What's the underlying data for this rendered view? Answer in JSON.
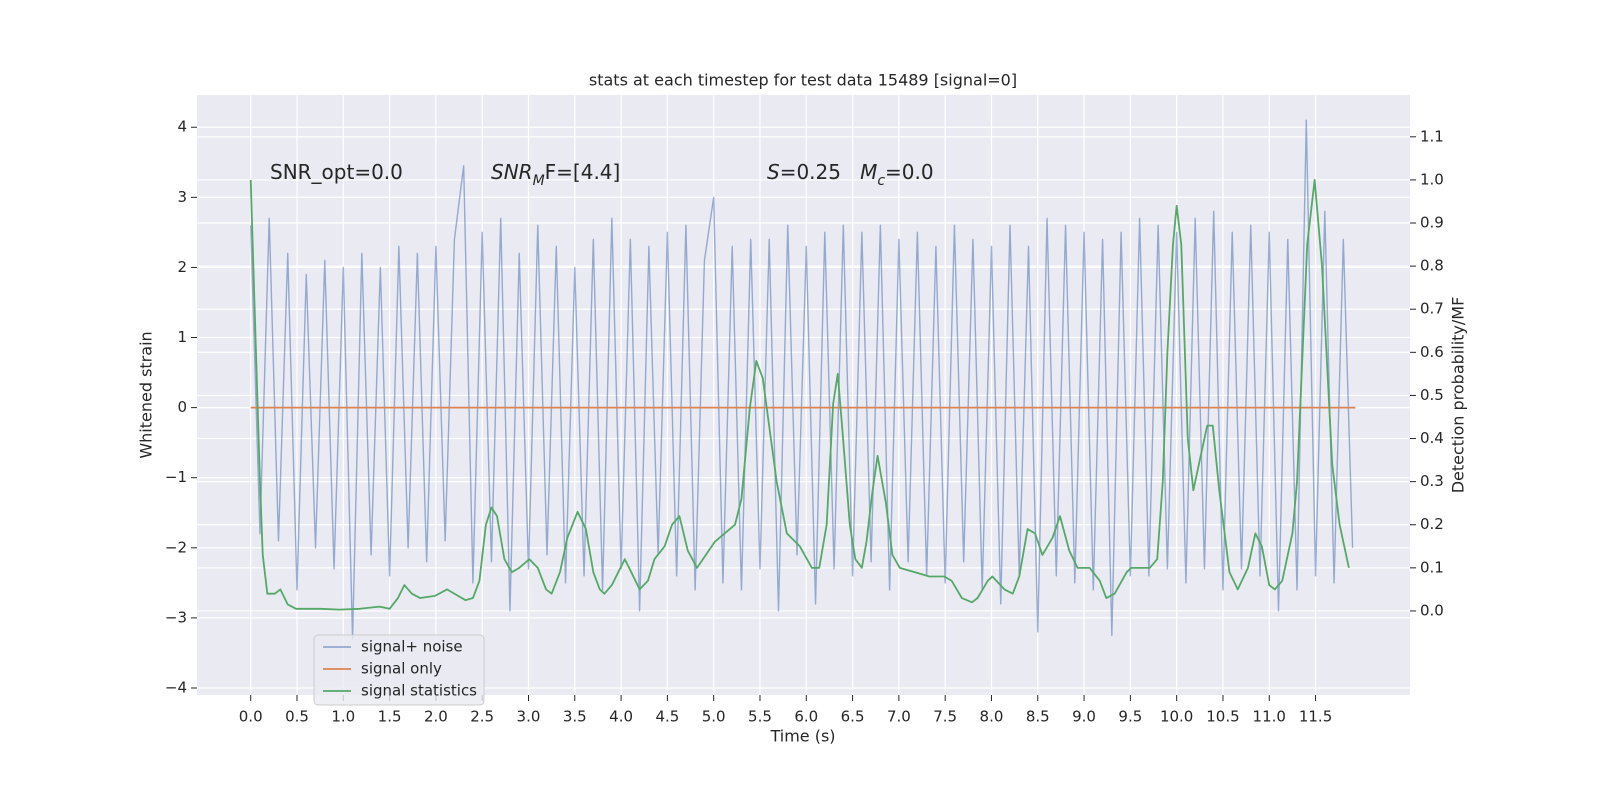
{
  "chart_data": {
    "type": "line",
    "title": "stats at each timestep for test data 15489 [signal=0]",
    "x_label": "Time (s)",
    "y_label": "Whitened strain",
    "y2_label": "Detection probability/MF",
    "xlim": [
      -0.58,
      12.52
    ],
    "ylim": [
      -4.1,
      4.46
    ],
    "y2lim": [
      -0.195,
      1.197
    ],
    "xticks": [
      {
        "value": 0,
        "label": "0.0"
      },
      {
        "value": 0.5,
        "label": "0.5"
      },
      {
        "value": 1,
        "label": "1.0"
      },
      {
        "value": 1.5,
        "label": "1.5"
      },
      {
        "value": 2,
        "label": "2.0"
      },
      {
        "value": 2.5,
        "label": "2.5"
      },
      {
        "value": 3,
        "label": "3.0"
      },
      {
        "value": 3.5,
        "label": "3.5"
      },
      {
        "value": 4,
        "label": "4.0"
      },
      {
        "value": 4.5,
        "label": "4.5"
      },
      {
        "value": 5,
        "label": "5.0"
      },
      {
        "value": 5.5,
        "label": "5.5"
      },
      {
        "value": 6,
        "label": "6.0"
      },
      {
        "value": 6.5,
        "label": "6.5"
      },
      {
        "value": 7,
        "label": "7.0"
      },
      {
        "value": 7.5,
        "label": "7.5"
      },
      {
        "value": 8,
        "label": "8.0"
      },
      {
        "value": 8.5,
        "label": "8.5"
      },
      {
        "value": 9,
        "label": "9.0"
      },
      {
        "value": 9.5,
        "label": "9.5"
      },
      {
        "value": 10,
        "label": "10.0"
      },
      {
        "value": 10.5,
        "label": "10.5"
      },
      {
        "value": 11,
        "label": "11.0"
      },
      {
        "value": 11.5,
        "label": "11.5"
      }
    ],
    "yticks": [
      {
        "value": -4,
        "label": "−4"
      },
      {
        "value": -3,
        "label": "−3"
      },
      {
        "value": -2,
        "label": "−2"
      },
      {
        "value": -1,
        "label": "−1"
      },
      0,
      1,
      2,
      3,
      4
    ],
    "y2ticks": [
      {
        "value": 0,
        "label": "0.0"
      },
      {
        "value": 0.1,
        "label": "0.1"
      },
      {
        "value": 0.2,
        "label": "0.2"
      },
      {
        "value": 0.3,
        "label": "0.3"
      },
      {
        "value": 0.4,
        "label": "0.4"
      },
      {
        "value": 0.5,
        "label": "0.5"
      },
      {
        "value": 0.6,
        "label": "0.6"
      },
      {
        "value": 0.7,
        "label": "0.7"
      },
      {
        "value": 0.8,
        "label": "0.8"
      },
      {
        "value": 0.9,
        "label": "0.9"
      },
      {
        "value": 1,
        "label": "1.0"
      },
      {
        "value": 1.1,
        "label": "1.1"
      }
    ],
    "grid": true,
    "legend": "lower left",
    "annotations": [
      [
        {
          "text": "SNR_opt=0.0",
          "style": "normal"
        }
      ],
      [
        {
          "text": "SNR",
          "style": "italic"
        },
        {
          "text": "M",
          "style": "sub"
        },
        {
          "text": "F=[4.4]",
          "style": "normal"
        }
      ],
      [
        {
          "text": "S",
          "style": "italic"
        },
        {
          "text": "=0.25   ",
          "style": "normal"
        },
        {
          "text": "M",
          "style": "italic"
        },
        {
          "text": "c",
          "style": "sub"
        },
        {
          "text": "=0.0",
          "style": "normal"
        }
      ]
    ],
    "series": [
      {
        "name": "signal+ noise",
        "color": "#4c72b0",
        "x": [
          0,
          0.1,
          0.2,
          0.3,
          0.4,
          0.5,
          0.6,
          0.7,
          0.8,
          0.9,
          1,
          1.1,
          1.2,
          1.3,
          1.4,
          1.5,
          1.6,
          1.7,
          1.8,
          1.9,
          2,
          2.1,
          2.2,
          2.3,
          2.4,
          2.5,
          2.6,
          2.7,
          2.8,
          2.9,
          3,
          3.1,
          3.2,
          3.3,
          3.4,
          3.5,
          3.6,
          3.7,
          3.8,
          3.9,
          4,
          4.1,
          4.2,
          4.3,
          4.4,
          4.5,
          4.6,
          4.7,
          4.8,
          4.9,
          5,
          5.1,
          5.2,
          5.3,
          5.4,
          5.5,
          5.6,
          5.7,
          5.8,
          5.9,
          6,
          6.1,
          6.2,
          6.3,
          6.4,
          6.5,
          6.6,
          6.7,
          6.8,
          6.9,
          7,
          7.1,
          7.2,
          7.3,
          7.4,
          7.5,
          7.6,
          7.7,
          7.8,
          7.9,
          8,
          8.1,
          8.2,
          8.3,
          8.4,
          8.5,
          8.6,
          8.7,
          8.8,
          8.9,
          9,
          9.1,
          9.2,
          9.3,
          9.4,
          9.5,
          9.6,
          9.7,
          9.8,
          9.9,
          10,
          10.1,
          10.2,
          10.3,
          10.4,
          10.5,
          10.6,
          10.7,
          10.8,
          10.9,
          11,
          11.1,
          11.2,
          11.3,
          11.4,
          11.5,
          11.6,
          11.7,
          11.8,
          11.9
        ],
        "values": [
          2.6,
          -1.8,
          2.7,
          -1.9,
          2.2,
          -2.6,
          1.9,
          -2.0,
          2.1,
          -2.3,
          2.0,
          -3.3,
          2.2,
          -2.1,
          2.0,
          -2.4,
          2.3,
          -2.0,
          2.2,
          -2.2,
          2.3,
          -1.9,
          2.4,
          3.45,
          -2.5,
          2.5,
          -2.2,
          2.7,
          -2.9,
          2.2,
          -2.3,
          2.6,
          -2.1,
          2.3,
          -2.5,
          2.0,
          -2.4,
          2.4,
          -2.6,
          2.7,
          -2.3,
          2.4,
          -2.9,
          2.3,
          -2.1,
          2.5,
          -2.4,
          2.6,
          -2.6,
          2.1,
          3.0,
          -2.5,
          2.3,
          -2.6,
          2.4,
          -2.3,
          2.4,
          -2.9,
          2.6,
          -2.1,
          2.3,
          -2.8,
          2.5,
          -2.3,
          2.6,
          -2.4,
          2.5,
          -2.2,
          2.6,
          -2.6,
          2.4,
          -2.2,
          2.5,
          -2.4,
          2.3,
          -2.5,
          2.6,
          -2.2,
          2.4,
          -2.6,
          2.3,
          -2.8,
          2.6,
          -2.4,
          2.3,
          -3.2,
          2.7,
          -2.4,
          2.6,
          -2.5,
          2.5,
          -2.6,
          2.4,
          -3.25,
          2.5,
          -2.4,
          2.7,
          -2.4,
          2.6,
          -2.3,
          2.5,
          -2.5,
          2.7,
          -2.3,
          2.8,
          -2.6,
          2.5,
          -2.3,
          2.6,
          -2.4,
          2.5,
          -2.9,
          2.4,
          -2.6,
          4.1,
          -2.4,
          2.8,
          -2.5,
          2.4,
          -2.0
        ]
      },
      {
        "name": "signal only",
        "color": "#dd8452",
        "x": [
          0,
          11.93
        ],
        "values": [
          0,
          0
        ]
      },
      {
        "name": "signal statistics",
        "color": "#55a868",
        "axis": "y2",
        "x": [
          0,
          0.04,
          0.1,
          0.13,
          0.18,
          0.26,
          0.32,
          0.4,
          0.49,
          0.75,
          0.96,
          1.18,
          1.39,
          1.5,
          1.59,
          1.66,
          1.74,
          1.83,
          1.99,
          2.12,
          2.24,
          2.32,
          2.4,
          2.47,
          2.54,
          2.6,
          2.66,
          2.74,
          2.82,
          2.9,
          3.01,
          3.1,
          3.19,
          3.25,
          3.34,
          3.42,
          3.53,
          3.62,
          3.7,
          3.77,
          3.82,
          3.9,
          4.04,
          4.11,
          4.2,
          4.29,
          4.36,
          4.47,
          4.55,
          4.63,
          4.72,
          4.82,
          5.01,
          5.23,
          5.3,
          5.39,
          5.46,
          5.53,
          5.68,
          5.79,
          5.93,
          6.06,
          6.14,
          6.22,
          6.29,
          6.34,
          6.39,
          6.47,
          6.53,
          6.6,
          6.65,
          6.71,
          6.77,
          6.86,
          6.93,
          7.01,
          7.17,
          7.33,
          7.49,
          7.57,
          7.68,
          7.79,
          7.85,
          7.96,
          8.01,
          8.14,
          8.23,
          8.3,
          8.39,
          8.47,
          8.55,
          8.66,
          8.74,
          8.84,
          8.93,
          9.06,
          9.17,
          9.24,
          9.33,
          9.46,
          9.51,
          9.71,
          9.79,
          9.85,
          9.9,
          9.96,
          10.0,
          10.05,
          10.12,
          10.18,
          10.25,
          10.33,
          10.39,
          10.46,
          10.57,
          10.66,
          10.77,
          10.85,
          10.92,
          11.0,
          11.06,
          11.14,
          11.25,
          11.3,
          11.41,
          11.49,
          11.57,
          11.68,
          11.76,
          11.86
        ],
        "values": [
          1.0,
          0.72,
          0.3,
          0.13,
          0.04,
          0.04,
          0.05,
          0.015,
          0.005,
          0.005,
          0.003,
          0.005,
          0.01,
          0.005,
          0.03,
          0.06,
          0.04,
          0.03,
          0.035,
          0.05,
          0.035,
          0.025,
          0.03,
          0.07,
          0.2,
          0.24,
          0.22,
          0.12,
          0.09,
          0.1,
          0.12,
          0.1,
          0.05,
          0.04,
          0.09,
          0.17,
          0.23,
          0.19,
          0.09,
          0.05,
          0.04,
          0.06,
          0.12,
          0.09,
          0.05,
          0.07,
          0.12,
          0.15,
          0.2,
          0.22,
          0.14,
          0.1,
          0.16,
          0.2,
          0.26,
          0.47,
          0.58,
          0.54,
          0.3,
          0.18,
          0.15,
          0.1,
          0.1,
          0.2,
          0.48,
          0.55,
          0.42,
          0.2,
          0.12,
          0.1,
          0.16,
          0.27,
          0.36,
          0.25,
          0.13,
          0.1,
          0.09,
          0.08,
          0.08,
          0.07,
          0.03,
          0.02,
          0.03,
          0.07,
          0.08,
          0.05,
          0.04,
          0.08,
          0.19,
          0.18,
          0.13,
          0.17,
          0.22,
          0.14,
          0.1,
          0.1,
          0.07,
          0.03,
          0.04,
          0.09,
          0.1,
          0.1,
          0.12,
          0.3,
          0.6,
          0.85,
          0.94,
          0.85,
          0.4,
          0.28,
          0.35,
          0.43,
          0.43,
          0.28,
          0.09,
          0.05,
          0.1,
          0.18,
          0.15,
          0.06,
          0.05,
          0.07,
          0.18,
          0.3,
          0.85,
          1.0,
          0.8,
          0.34,
          0.2,
          0.1
        ]
      }
    ]
  }
}
